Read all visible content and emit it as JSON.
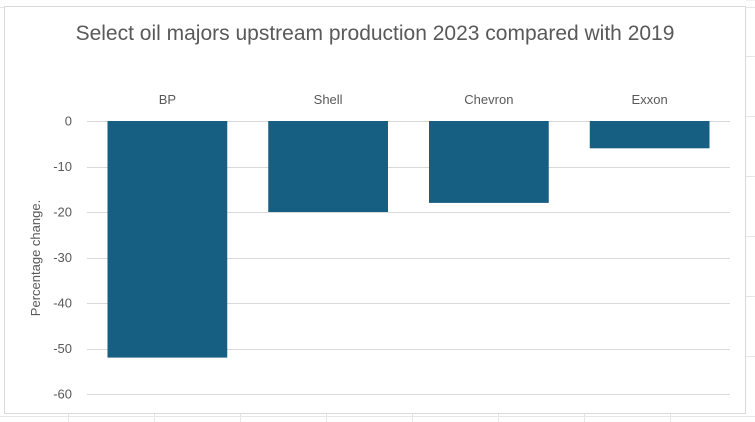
{
  "chart_data": {
    "type": "bar",
    "title": "Select oil majors upstream production 2023 compared with 2019",
    "ylabel": "Percentage change.",
    "xlabel": "",
    "categories": [
      "BP",
      "Shell",
      "Chevron",
      "Exxon"
    ],
    "values": [
      -52,
      -20,
      -18,
      -6
    ],
    "ylim": [
      -60,
      0
    ],
    "yticks": [
      0,
      -10,
      -20,
      -30,
      -40,
      -50,
      -60
    ],
    "ytick_labels": [
      "0",
      "-10",
      "-20",
      "-30",
      "-40",
      "-50",
      "-60"
    ],
    "category_axis_position": "top",
    "grid": true,
    "legend": "none",
    "bar_color": "#175f82",
    "grid_color": "#d9d9d9"
  }
}
